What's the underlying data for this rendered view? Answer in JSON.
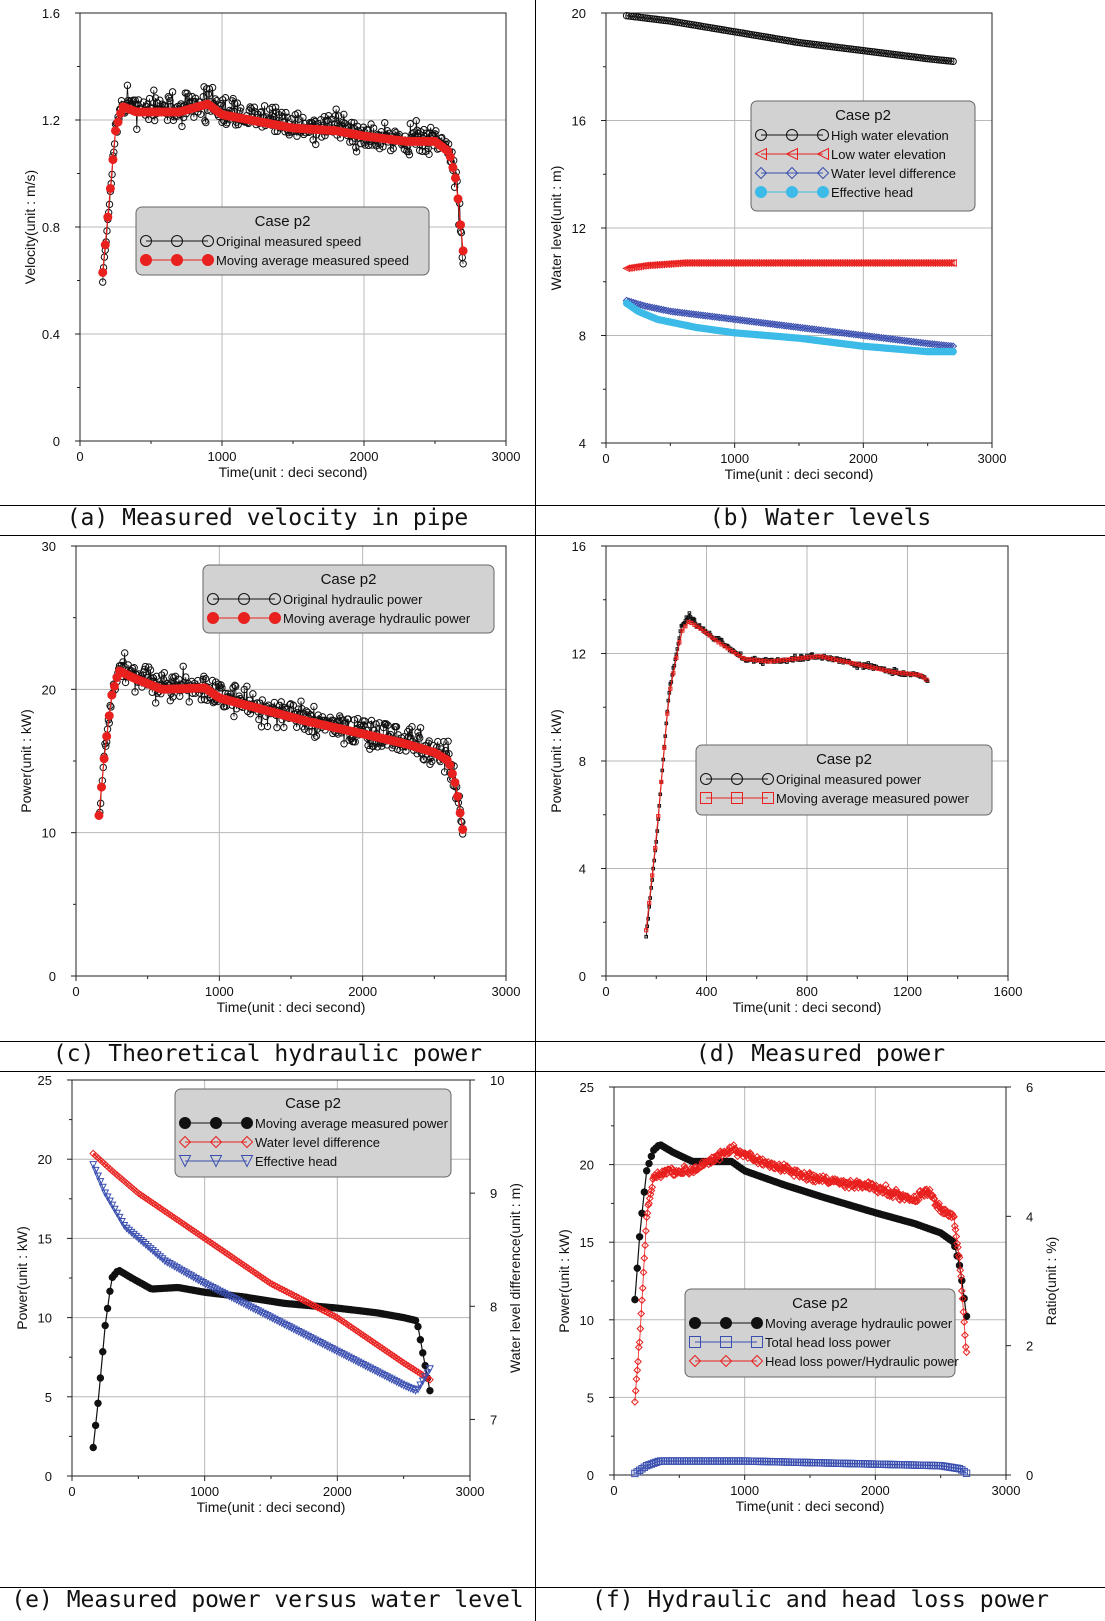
{
  "colors": {
    "black": "#111111",
    "red": "#e8201e",
    "blue": "#3a4fb0",
    "cyan": "#3cbbe8",
    "legend_bg": "#d2d2d2",
    "grid": "#b8b8b8"
  },
  "chart_data": [
    {
      "id": "a",
      "type": "scatter",
      "caption": "(a) Measured velocity in pipe",
      "xlabel": "Time(unit : deci second)",
      "ylabel": "Velocity(unit : m/s)",
      "xlim": [
        0,
        3000
      ],
      "ylim": [
        0,
        1.6
      ],
      "xticks": [
        "0",
        "1000",
        "2000",
        "3000"
      ],
      "xtick_values": [
        0,
        1000,
        2000,
        3000
      ],
      "yticks": [
        "0",
        "0.4",
        "0.8",
        "1.2",
        "1.6"
      ],
      "ytick_values": [
        0,
        0.4,
        0.8,
        1.2,
        1.6
      ],
      "legend": {
        "title": "Case p2",
        "position": "center-left",
        "entries": [
          {
            "label": "Original measured speed",
            "color": "#111111",
            "marker": "open-circle"
          },
          {
            "label": "Moving average measured speed",
            "color": "#e8201e",
            "marker": "filled-circle"
          }
        ]
      },
      "series": [
        {
          "name": "Original measured speed",
          "color": "#111111",
          "marker": "open-circle",
          "noise": 0.045,
          "x": [
            160,
            200,
            250,
            300,
            400,
            500,
            700,
            900,
            1000,
            1200,
            1500,
            1800,
            2000,
            2300,
            2500,
            2600,
            2650,
            2700
          ],
          "y": [
            0.62,
            0.85,
            1.15,
            1.26,
            1.25,
            1.24,
            1.24,
            1.27,
            1.23,
            1.21,
            1.18,
            1.17,
            1.15,
            1.13,
            1.13,
            1.09,
            0.98,
            0.68
          ]
        },
        {
          "name": "Moving average measured speed",
          "color": "#e8201e",
          "marker": "filled-circle",
          "noise": 0,
          "x": [
            160,
            200,
            250,
            300,
            400,
            500,
            700,
            900,
            1000,
            1200,
            1500,
            1800,
            2000,
            2300,
            2500,
            2600,
            2650,
            2700
          ],
          "y": [
            0.63,
            0.86,
            1.16,
            1.25,
            1.23,
            1.23,
            1.23,
            1.26,
            1.22,
            1.2,
            1.17,
            1.16,
            1.14,
            1.12,
            1.12,
            1.08,
            0.97,
            0.7
          ]
        }
      ]
    },
    {
      "id": "b",
      "type": "line",
      "caption": "(b) Water levels",
      "xlabel": "Time(unit : deci second)",
      "ylabel": "Water level(unit : m)",
      "xlim": [
        0,
        3000
      ],
      "ylim": [
        4,
        20
      ],
      "xticks": [
        "0",
        "1000",
        "2000",
        "3000"
      ],
      "xtick_values": [
        0,
        1000,
        2000,
        3000
      ],
      "yticks": [
        "4",
        "8",
        "12",
        "16",
        "20"
      ],
      "ytick_values": [
        4,
        8,
        12,
        16,
        20
      ],
      "legend": {
        "title": "Case p2",
        "position": "top-right",
        "entries": [
          {
            "label": "High water elevation",
            "color": "#111111",
            "marker": "open-circle"
          },
          {
            "label": "Low water elevation",
            "color": "#e8201e",
            "marker": "open-triangle-left"
          },
          {
            "label": "Water level difference",
            "color": "#3a4fb0",
            "marker": "open-diamond"
          },
          {
            "label": "Effective head",
            "color": "#3cbbe8",
            "marker": "filled-circle"
          }
        ]
      },
      "series": [
        {
          "name": "High water elevation",
          "color": "#111111",
          "marker": "open-circle",
          "noise": 0,
          "x": [
            160,
            500,
            1000,
            1500,
            2000,
            2500,
            2700
          ],
          "y": [
            19.9,
            19.7,
            19.3,
            18.9,
            18.6,
            18.3,
            18.2
          ]
        },
        {
          "name": "Low water elevation",
          "color": "#e8201e",
          "marker": "open-triangle-left",
          "noise": 0,
          "x": [
            160,
            300,
            600,
            1000,
            1500,
            2000,
            2500,
            2700
          ],
          "y": [
            10.5,
            10.6,
            10.7,
            10.7,
            10.7,
            10.7,
            10.7,
            10.7
          ]
        },
        {
          "name": "Water level difference",
          "color": "#3a4fb0",
          "marker": "open-diamond",
          "noise": 0,
          "x": [
            160,
            300,
            500,
            1000,
            1500,
            2000,
            2500,
            2700
          ],
          "y": [
            9.3,
            9.1,
            8.9,
            8.6,
            8.3,
            8.0,
            7.7,
            7.6
          ]
        },
        {
          "name": "Effective head",
          "color": "#3cbbe8",
          "marker": "filled-circle",
          "noise": 0,
          "x": [
            160,
            250,
            400,
            700,
            1000,
            1500,
            2000,
            2500,
            2700
          ],
          "y": [
            9.2,
            8.9,
            8.6,
            8.3,
            8.1,
            7.9,
            7.6,
            7.4,
            7.4
          ]
        }
      ]
    },
    {
      "id": "c",
      "type": "scatter",
      "caption": "(c) Theoretical hydraulic power",
      "xlabel": "Time(unit : deci second)",
      "ylabel": "Power(unit : kW)",
      "xlim": [
        0,
        3000
      ],
      "ylim": [
        0,
        30
      ],
      "xticks": [
        "0",
        "1000",
        "2000",
        "3000"
      ],
      "xtick_values": [
        0,
        1000,
        2000,
        3000
      ],
      "yticks": [
        "0",
        "10",
        "20",
        "30"
      ],
      "ytick_values": [
        0,
        10,
        20,
        30
      ],
      "legend": {
        "title": "Case p2",
        "position": "top-right",
        "entries": [
          {
            "label": "Original hydraulic power",
            "color": "#111111",
            "marker": "open-circle"
          },
          {
            "label": "Moving average hydraulic power",
            "color": "#e8201e",
            "marker": "filled-circle"
          }
        ]
      },
      "series": [
        {
          "name": "Original hydraulic power",
          "color": "#111111",
          "marker": "open-circle",
          "noise": 0.9,
          "x": [
            160,
            200,
            250,
            300,
            400,
            600,
            900,
            1000,
            1300,
            1600,
            2000,
            2300,
            2500,
            2600,
            2650,
            2700
          ],
          "y": [
            11,
            15.5,
            19.5,
            21.5,
            21,
            20.2,
            20.2,
            19.6,
            18.8,
            18.0,
            17.1,
            16.4,
            15.8,
            15.2,
            13.5,
            9.8
          ]
        },
        {
          "name": "Moving average hydraulic power",
          "color": "#e8201e",
          "marker": "filled-circle",
          "noise": 0,
          "x": [
            160,
            200,
            250,
            300,
            400,
            600,
            900,
            1000,
            1300,
            1600,
            2000,
            2300,
            2500,
            2600,
            2650,
            2700
          ],
          "y": [
            11.2,
            15.6,
            19.6,
            21.3,
            20.8,
            20.0,
            20.1,
            19.4,
            18.6,
            17.8,
            16.9,
            16.2,
            15.6,
            15.0,
            13.3,
            10.1
          ]
        }
      ]
    },
    {
      "id": "d",
      "type": "line",
      "caption": "(d) Measured power",
      "xlabel": "Time(unit : deci second)",
      "ylabel": "Power(unit : kW)",
      "xlim": [
        0,
        1600
      ],
      "ylim": [
        0,
        16
      ],
      "xticks": [
        "0",
        "400",
        "800",
        "1200",
        "1600"
      ],
      "xtick_values": [
        0,
        400,
        800,
        1200,
        1600
      ],
      "yticks": [
        "0",
        "4",
        "8",
        "12",
        "16"
      ],
      "ytick_values": [
        0,
        4,
        8,
        12,
        16
      ],
      "legend": {
        "title": "Case p2",
        "position": "center-right",
        "entries": [
          {
            "label": "Original measured power",
            "color": "#111111",
            "marker": "open-circle"
          },
          {
            "label": "Moving average measured power",
            "color": "#e8201e",
            "marker": "open-square"
          }
        ]
      },
      "series": [
        {
          "name": "Original measured power",
          "color": "#111111",
          "marker": "tiny-square",
          "noise": 0.08,
          "x": [
            160,
            200,
            250,
            300,
            330,
            380,
            450,
            550,
            650,
            750,
            850,
            950,
            1050,
            1150,
            1250,
            1280
          ],
          "y": [
            1.5,
            5.0,
            10.5,
            13.0,
            13.4,
            12.9,
            12.5,
            11.8,
            11.7,
            11.8,
            11.9,
            11.7,
            11.5,
            11.3,
            11.2,
            11.0
          ]
        },
        {
          "name": "Moving average measured power",
          "color": "#e8201e",
          "marker": "open-square",
          "noise": 0,
          "x": [
            160,
            200,
            250,
            300,
            330,
            380,
            450,
            550,
            650,
            750,
            850,
            950,
            1050,
            1150,
            1250,
            1280
          ],
          "y": [
            1.7,
            5.1,
            10.4,
            12.8,
            13.2,
            12.9,
            12.4,
            11.8,
            11.7,
            11.8,
            11.9,
            11.7,
            11.5,
            11.3,
            11.2,
            11.0
          ]
        }
      ]
    },
    {
      "id": "e",
      "type": "line",
      "caption": "(e) Measured power versus water level",
      "xlabel": "Time(unit : deci second)",
      "ylabel": "Power(unit : kW)",
      "y2label": "Water level difference(unit : m)",
      "xlim": [
        0,
        3000
      ],
      "ylim": [
        0,
        25
      ],
      "y2lim": [
        6.5,
        10
      ],
      "xticks": [
        "0",
        "1000",
        "2000",
        "3000"
      ],
      "xtick_values": [
        0,
        1000,
        2000,
        3000
      ],
      "yticks": [
        "0",
        "5",
        "10",
        "15",
        "20",
        "25"
      ],
      "ytick_values": [
        0,
        5,
        10,
        15,
        20,
        25
      ],
      "y2ticks": [
        "7",
        "8",
        "9",
        "10"
      ],
      "y2tick_values": [
        7,
        8,
        9,
        10
      ],
      "legend": {
        "title": "Case p2",
        "position": "top-right",
        "entries": [
          {
            "label": "Moving average measured power",
            "color": "#111111",
            "marker": "filled-circle"
          },
          {
            "label": "Water level difference",
            "color": "#e8201e",
            "marker": "open-diamond"
          },
          {
            "label": "Effective head",
            "color": "#3a4fb0",
            "marker": "open-triangle-down"
          }
        ]
      },
      "series": [
        {
          "name": "Moving average measured power",
          "axis": "left",
          "color": "#111111",
          "marker": "filled-circle",
          "noise": 0,
          "x": [
            160,
            200,
            250,
            300,
            350,
            450,
            600,
            800,
            1000,
            1300,
            1600,
            2000,
            2300,
            2500,
            2600,
            2650,
            2700
          ],
          "y": [
            1.8,
            4.9,
            9.5,
            12.5,
            13.0,
            12.5,
            11.8,
            11.9,
            11.6,
            11.3,
            10.9,
            10.6,
            10.3,
            10.0,
            9.8,
            7.5,
            5.3
          ]
        },
        {
          "name": "Water level difference",
          "axis": "right",
          "color": "#e8201e",
          "marker": "open-diamond",
          "noise": 0,
          "x": [
            160,
            300,
            500,
            1000,
            1500,
            2000,
            2500,
            2700
          ],
          "y": [
            9.35,
            9.2,
            9.0,
            8.6,
            8.2,
            7.9,
            7.5,
            7.35
          ]
        },
        {
          "name": "Effective head",
          "axis": "right",
          "color": "#3a4fb0",
          "marker": "open-triangle-down",
          "noise": 0,
          "x": [
            160,
            250,
            400,
            700,
            1000,
            1500,
            2000,
            2500,
            2600,
            2700
          ],
          "y": [
            9.25,
            9.0,
            8.7,
            8.4,
            8.2,
            7.9,
            7.6,
            7.3,
            7.25,
            7.45
          ]
        }
      ]
    },
    {
      "id": "f",
      "type": "line",
      "caption": "(f) Hydraulic and head loss power",
      "xlabel": "Time(unit : deci second)",
      "ylabel": "Power(unit : kW)",
      "y2label": "Ratio(unit : %)",
      "xlim": [
        0,
        3000
      ],
      "ylim": [
        0,
        25
      ],
      "y2lim": [
        0,
        6
      ],
      "xticks": [
        "0",
        "1000",
        "2000",
        "3000"
      ],
      "xtick_values": [
        0,
        1000,
        2000,
        3000
      ],
      "yticks": [
        "0",
        "5",
        "10",
        "15",
        "20",
        "25"
      ],
      "ytick_values": [
        0,
        5,
        10,
        15,
        20,
        25
      ],
      "y2ticks": [
        "0",
        "2",
        "4",
        "6"
      ],
      "y2tick_values": [
        0,
        2,
        4,
        6
      ],
      "legend": {
        "title": "Case p2",
        "position": "center-right",
        "entries": [
          {
            "label": "Moving average hydraulic power",
            "color": "#111111",
            "marker": "filled-circle"
          },
          {
            "label": "Total head loss power",
            "color": "#3a4fb0",
            "marker": "open-square"
          },
          {
            "label": "Head loss power/Hydraulic power",
            "color": "#e8201e",
            "marker": "open-diamond"
          }
        ]
      },
      "series": [
        {
          "name": "Moving average hydraulic power",
          "axis": "left",
          "color": "#111111",
          "marker": "filled-circle",
          "noise": 0,
          "x": [
            160,
            200,
            250,
            300,
            350,
            450,
            600,
            900,
            1000,
            1300,
            1600,
            2000,
            2300,
            2500,
            2600,
            2650,
            2700
          ],
          "y": [
            11.3,
            15.8,
            19.6,
            20.9,
            21.3,
            20.8,
            20.2,
            20.2,
            19.6,
            18.7,
            17.9,
            16.9,
            16.2,
            15.6,
            15.0,
            13.3,
            10.1
          ]
        },
        {
          "name": "Total head loss power",
          "axis": "left",
          "color": "#3a4fb0",
          "marker": "open-square",
          "noise": 0,
          "x": [
            160,
            250,
            350,
            600,
            1000,
            1500,
            2000,
            2500,
            2650,
            2700
          ],
          "y": [
            0.1,
            0.6,
            0.9,
            0.9,
            0.9,
            0.8,
            0.7,
            0.6,
            0.4,
            0.1
          ]
        },
        {
          "name": "Head loss power/Hydraulic power",
          "axis": "right",
          "color": "#e8201e",
          "marker": "open-diamond",
          "noise": 0.05,
          "x": [
            160,
            200,
            250,
            300,
            400,
            600,
            900,
            1000,
            1200,
            1500,
            2000,
            2300,
            2400,
            2500,
            2600,
            2650,
            2700
          ],
          "y": [
            1.15,
            2.2,
            4.0,
            4.6,
            4.7,
            4.7,
            5.05,
            4.95,
            4.8,
            4.6,
            4.45,
            4.25,
            4.4,
            4.1,
            4.0,
            3.2,
            1.8
          ]
        }
      ]
    }
  ]
}
